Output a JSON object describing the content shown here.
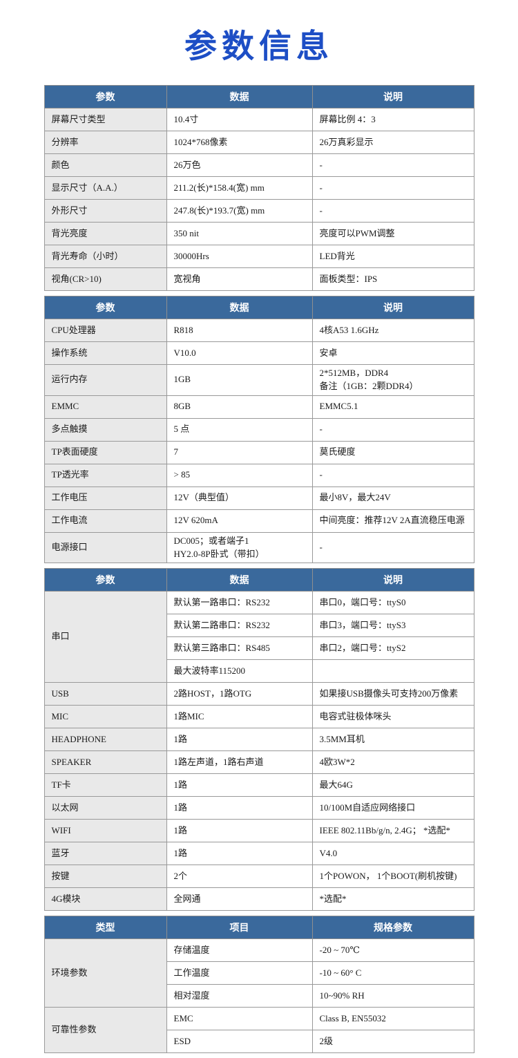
{
  "page_title": "参数信息",
  "colors": {
    "title_blue": "#1d4ec5",
    "table_header_bg": "#3a699c",
    "label_column_bg": "#e9e9e9",
    "border_gray": "#999999"
  },
  "tables": [
    {
      "headers": [
        "参数",
        "数据",
        "说明"
      ],
      "rows": [
        [
          "屏幕尺寸类型",
          "10.4寸",
          "屏幕比例 4：3"
        ],
        [
          "分辨率",
          "1024*768像素",
          "26万真彩显示"
        ],
        [
          "颜色",
          "26万色",
          "-"
        ],
        [
          "显示尺寸（A.A.）",
          "211.2(长)*158.4(宽) mm",
          "-"
        ],
        [
          "外形尺寸",
          "247.8(长)*193.7(宽) mm",
          "-"
        ],
        [
          "背光亮度",
          "350 nit",
          "亮度可以PWM调整"
        ],
        [
          "背光寿命（小时）",
          "30000Hrs",
          "LED背光"
        ],
        [
          "视角(CR>10)",
          "宽视角",
          "面板类型：IPS"
        ]
      ]
    },
    {
      "headers": [
        "参数",
        "数据",
        "说明"
      ],
      "rows": [
        [
          "CPU处理器",
          "R818",
          "4核A53 1.6GHz"
        ],
        [
          "操作系统",
          "V10.0",
          "安卓"
        ],
        [
          "运行内存",
          "1GB",
          "2*512MB，DDR4\n备注（1GB：2颗DDR4）"
        ],
        [
          "EMMC",
          "8GB",
          "EMMC5.1"
        ],
        [
          "多点触摸",
          "5 点",
          "-"
        ],
        [
          "TP表面硬度",
          "7",
          "莫氏硬度"
        ],
        [
          "TP透光率",
          "> 85",
          "-"
        ],
        [
          "工作电压",
          "12V（典型值）",
          "最小8V，最大24V"
        ],
        [
          "工作电流",
          "12V 620mA",
          "中间亮度：推荐12V 2A直流稳压电源"
        ],
        [
          "电源接口",
          "DC005；或者端子1\nHY2.0-8P卧式（带扣）",
          "-"
        ]
      ]
    },
    {
      "headers": [
        "参数",
        "数据",
        "说明"
      ],
      "group_label": "串口",
      "group_rows": [
        [
          "默认第一路串口：RS232",
          "串口0，端口号：ttyS0"
        ],
        [
          "默认第二路串口：RS232",
          "串口3，端口号：ttyS3"
        ],
        [
          "默认第三路串口：RS485",
          "串口2，端口号：ttyS2"
        ],
        [
          "最大波特率115200",
          ""
        ]
      ],
      "rows": [
        [
          "USB",
          "2路HOST，1路OTG",
          "如果接USB摄像头可支持200万像素"
        ],
        [
          "MIC",
          "1路MIC",
          "电容式驻极体咪头"
        ],
        [
          "HEADPHONE",
          "1路",
          "3.5MM耳机"
        ],
        [
          "SPEAKER",
          "1路左声道，1路右声道",
          "4欧3W*2"
        ],
        [
          "TF卡",
          "1路",
          "最大64G"
        ],
        [
          "以太网",
          "1路",
          "10/100M自适应网络接口"
        ],
        [
          "WIFI",
          "1路",
          "IEEE 802.11Bb/g/n, 2.4G；  *选配*"
        ],
        [
          "蓝牙",
          "1路",
          "V4.0"
        ],
        [
          "按键",
          "2个",
          "1个POWON，  1个BOOT(刷机按键)"
        ],
        [
          "4G模块",
          "全网通",
          "*选配*"
        ]
      ]
    },
    {
      "headers": [
        "类型",
        "项目",
        "规格参数"
      ],
      "group1_label": "环境参数",
      "group1_rows": [
        [
          "存储温度",
          "-20 ~ 70℃"
        ],
        [
          "工作温度",
          "-10 ~ 60° C"
        ],
        [
          "相对湿度",
          "10~90% RH"
        ]
      ],
      "group2_label": "可靠性参数",
      "group2_rows": [
        [
          "EMC",
          "Class B, EN55032"
        ],
        [
          "ESD",
          "2级"
        ]
      ]
    }
  ]
}
